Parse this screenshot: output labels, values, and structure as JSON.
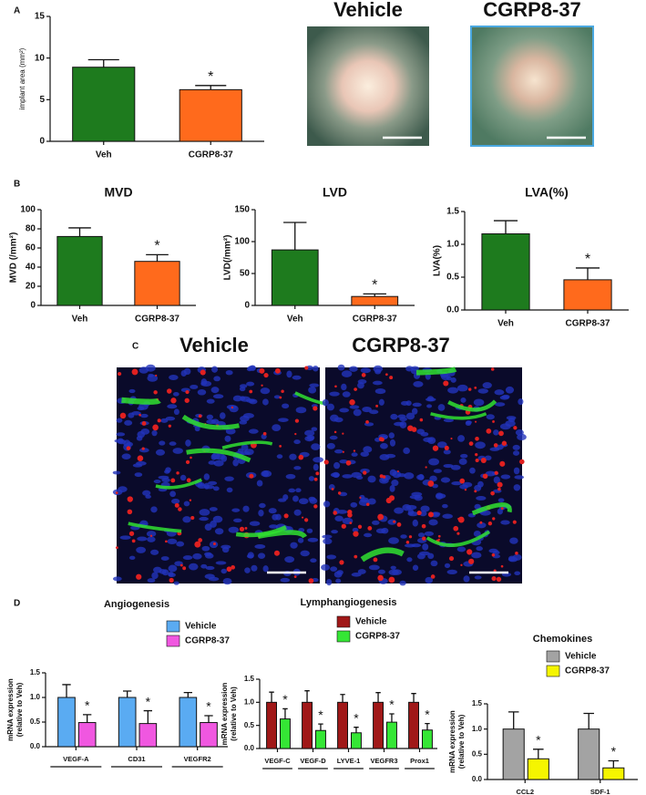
{
  "panels": [
    "A",
    "B",
    "C",
    "D"
  ],
  "photos": [
    {
      "title": "Vehicle"
    },
    {
      "title": "CGRP8-37"
    }
  ],
  "micrographs": [
    {
      "title": "Vehicle"
    },
    {
      "title": "CGRP8-37"
    }
  ],
  "chart_data": [
    {
      "type": "bar",
      "ylabel": [
        "implant area (mm²)"
      ],
      "categories": [
        "Veh",
        "CGRP8-37"
      ],
      "values": [
        8.9,
        6.2
      ],
      "errors": [
        0.9,
        0.5
      ],
      "colors": [
        "#1e7b1e",
        "#ff6a1c"
      ],
      "annotations": [
        null,
        "*"
      ],
      "ylim": [
        0,
        15
      ],
      "yticks": [
        0,
        5,
        10,
        15
      ]
    },
    {
      "type": "bar",
      "title": "MVD",
      "ylabel": [
        "MVD (/mm²)"
      ],
      "categories": [
        "Veh",
        "CGRP8-37"
      ],
      "values": [
        72,
        46
      ],
      "errors": [
        9,
        7
      ],
      "colors": [
        "#1e7b1e",
        "#ff6a1c"
      ],
      "annotations": [
        null,
        "*"
      ],
      "ylim": [
        0,
        100
      ],
      "yticks": [
        0,
        20,
        40,
        60,
        80,
        100
      ]
    },
    {
      "type": "bar",
      "title": "LVD",
      "ylabel": [
        "LVD(/mm²)"
      ],
      "categories": [
        "Veh",
        "CGRP8-37"
      ],
      "values": [
        87,
        14
      ],
      "errors": [
        43,
        4
      ],
      "colors": [
        "#1e7b1e",
        "#ff6a1c"
      ],
      "annotations": [
        null,
        "*"
      ],
      "ylim": [
        0,
        150
      ],
      "yticks": [
        0,
        50,
        100,
        150
      ]
    },
    {
      "type": "bar",
      "title": "LVA(%)",
      "ylabel": [
        "LVA(%)"
      ],
      "categories": [
        "Veh",
        "CGRP8-37"
      ],
      "values": [
        1.16,
        0.46
      ],
      "errors": [
        0.2,
        0.18
      ],
      "colors": [
        "#1e7b1e",
        "#ff6a1c"
      ],
      "annotations": [
        null,
        "*"
      ],
      "ylim": [
        0,
        1.5
      ],
      "yticks": [
        {
          "value": 0,
          "label": "0.0"
        },
        0.5,
        {
          "value": 1,
          "label": "1.0"
        },
        1.5
      ]
    },
    {
      "type": "grouped-bar",
      "title": "Angiogenesis",
      "ylabel": [
        "mRNA expression",
        "(relative to Veh)"
      ],
      "categories": [
        "VEGF-A",
        "CD31",
        "VEGFR2"
      ],
      "legend": "upper right",
      "series": [
        {
          "name": "Vehicle",
          "color": "#5aabf2",
          "values": [
            1,
            1,
            1
          ],
          "errors": [
            0.26,
            0.13,
            0.1
          ]
        },
        {
          "name": "CGRP8-37",
          "color": "#f057e0",
          "values": [
            0.49,
            0.47,
            0.49
          ],
          "errors": [
            0.16,
            0.26,
            0.14
          ],
          "annotations": [
            "*",
            "*",
            "*"
          ]
        }
      ],
      "ylim": [
        0,
        1.5
      ],
      "yticks": [
        {
          "value": 0,
          "label": "0.0"
        },
        0.5,
        {
          "value": 1,
          "label": "1.0"
        },
        1.5
      ]
    },
    {
      "type": "grouped-bar",
      "title": "Lymphangiogenesis",
      "ylabel": [
        "mRNA expression",
        "(relative to Veh)"
      ],
      "categories": [
        "VEGF-C",
        "VEGF-D",
        "LYVE-1",
        "VEGFR3",
        "Prox1"
      ],
      "legend": "upper right",
      "series": [
        {
          "name": "Vehicle",
          "color": "#a01818",
          "values": [
            1,
            1,
            1,
            1,
            1
          ],
          "errors": [
            0.22,
            0.25,
            0.17,
            0.21,
            0.19
          ]
        },
        {
          "name": "CGRP8-37",
          "color": "#35e635",
          "values": [
            0.64,
            0.39,
            0.34,
            0.57,
            0.4
          ],
          "errors": [
            0.22,
            0.14,
            0.12,
            0.18,
            0.14
          ],
          "annotations": [
            "*",
            "*",
            "*",
            "*",
            "*"
          ]
        }
      ],
      "ylim": [
        0,
        1.5
      ],
      "yticks": [
        {
          "value": 0,
          "label": "0.0"
        },
        0.5,
        {
          "value": 1,
          "label": "1.0"
        },
        1.5
      ]
    },
    {
      "type": "grouped-bar",
      "title": "Chemokines",
      "ylabel": [
        "mRNA expression",
        "(relative to Veh)"
      ],
      "categories": [
        "CCL2",
        "SDF-1"
      ],
      "legend": "upper right",
      "series": [
        {
          "name": "Vehicle",
          "color": "#a3a3a3",
          "values": [
            1,
            1
          ],
          "errors": [
            0.34,
            0.31
          ]
        },
        {
          "name": "CGRP8-37",
          "color": "#f5f500",
          "values": [
            0.41,
            0.23
          ],
          "errors": [
            0.19,
            0.14
          ],
          "annotations": [
            "*",
            "*"
          ]
        }
      ],
      "ylim": [
        0,
        1.5
      ],
      "yticks": [
        {
          "value": 0,
          "label": "0.0"
        },
        0.5,
        {
          "value": 1,
          "label": "1.0"
        },
        1.5
      ]
    }
  ]
}
